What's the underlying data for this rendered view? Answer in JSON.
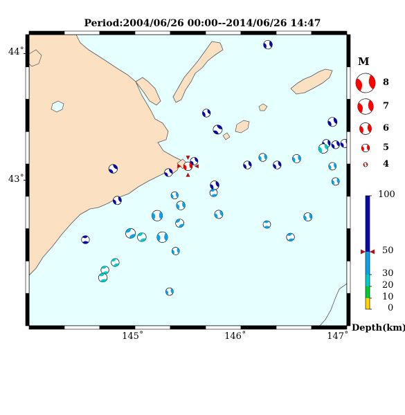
{
  "title": "Period:2004/06/26 00:00--2014/06/26 14:47",
  "lat_ticks": [
    {
      "value": 44,
      "label": "44˚"
    },
    {
      "value": 43,
      "label": "43˚"
    }
  ],
  "lon_ticks": [
    {
      "value": 145,
      "label": "145˚"
    },
    {
      "value": 146,
      "label": "146˚"
    },
    {
      "value": 147,
      "label": "147˚"
    }
  ],
  "colors": {
    "sea": "#e6ffff",
    "land": "#fbe0c2",
    "shallow": "#00ccc8",
    "mid": "#0aa2e8",
    "deep": "#0a0aaa",
    "latest": "#ff0000",
    "marker": "#b01010"
  },
  "magnitude_legend": {
    "title": "M",
    "items": [
      {
        "mag": 8,
        "label": "8"
      },
      {
        "mag": 7,
        "label": "7"
      },
      {
        "mag": 6,
        "label": "6"
      },
      {
        "mag": 5,
        "label": "5"
      },
      {
        "mag": 4,
        "label": "4"
      }
    ]
  },
  "depth_legend": {
    "unit_label": "Depth(km)",
    "ticks": [
      {
        "value": 100,
        "label": "100"
      },
      {
        "value": 50,
        "label": "50"
      },
      {
        "value": 30,
        "label": "30"
      },
      {
        "value": 20,
        "label": "20"
      },
      {
        "value": 10,
        "label": "10"
      },
      {
        "value": 0,
        "label": "0"
      }
    ],
    "bands": [
      {
        "from": 0,
        "to": 10,
        "color": "#ffd400"
      },
      {
        "from": 10,
        "to": 20,
        "color": "#00cc33"
      },
      {
        "from": 20,
        "to": 30,
        "color": "#00ccc8"
      },
      {
        "from": 30,
        "to": 50,
        "color": "#0aa2e8"
      },
      {
        "from": 50,
        "to": 100,
        "color": "#0a0aaa"
      }
    ],
    "latest_event_depth": 50
  },
  "events": [
    {
      "lon": 146.33,
      "lat": 44.07,
      "mag": 5.2,
      "depth": "deep",
      "rot": 30
    },
    {
      "lon": 145.73,
      "lat": 43.53,
      "mag": 5.0,
      "depth": "deep",
      "rot": 200
    },
    {
      "lon": 145.84,
      "lat": 43.4,
      "mag": 5.3,
      "depth": "deep",
      "rot": 350
    },
    {
      "lon": 145.61,
      "lat": 43.15,
      "mag": 4.9,
      "depth": "deep",
      "rot": 10
    },
    {
      "lon": 145.55,
      "lat": 43.11,
      "mag": 5.2,
      "depth": "latest",
      "rot": 30
    },
    {
      "lon": 145.36,
      "lat": 43.06,
      "mag": 5.0,
      "depth": "deep",
      "rot": 10
    },
    {
      "lon": 144.82,
      "lat": 43.09,
      "mag": 5.2,
      "depth": "deep",
      "rot": 0
    },
    {
      "lon": 144.86,
      "lat": 42.84,
      "mag": 5.1,
      "depth": "deep",
      "rot": 20
    },
    {
      "lon": 145.81,
      "lat": 42.96,
      "mag": 5.2,
      "depth": "deep",
      "rot": 20
    },
    {
      "lon": 145.8,
      "lat": 42.9,
      "mag": 4.9,
      "depth": "mid",
      "rot": 120
    },
    {
      "lon": 145.42,
      "lat": 42.88,
      "mag": 4.8,
      "depth": "mid",
      "rot": 30
    },
    {
      "lon": 145.48,
      "lat": 42.8,
      "mag": 5.2,
      "depth": "mid",
      "rot": 30
    },
    {
      "lon": 145.25,
      "lat": 42.72,
      "mag": 5.7,
      "depth": "mid",
      "rot": 40
    },
    {
      "lon": 145.47,
      "lat": 42.66,
      "mag": 5.1,
      "depth": "mid",
      "rot": 100
    },
    {
      "lon": 145.85,
      "lat": 42.73,
      "mag": 5.1,
      "depth": "mid",
      "rot": 20
    },
    {
      "lon": 144.99,
      "lat": 42.58,
      "mag": 5.5,
      "depth": "mid",
      "rot": 100
    },
    {
      "lon": 145.1,
      "lat": 42.55,
      "mag": 5.2,
      "depth": "shallow",
      "rot": 110
    },
    {
      "lon": 145.3,
      "lat": 42.55,
      "mag": 5.7,
      "depth": "mid",
      "rot": 40
    },
    {
      "lon": 144.55,
      "lat": 42.53,
      "mag": 5.0,
      "depth": "deep",
      "rot": 130
    },
    {
      "lon": 145.43,
      "lat": 42.44,
      "mag": 4.9,
      "depth": "mid",
      "rot": 30
    },
    {
      "lon": 144.84,
      "lat": 42.35,
      "mag": 5.0,
      "depth": "shallow",
      "rot": 110
    },
    {
      "lon": 144.74,
      "lat": 42.29,
      "mag": 5.0,
      "depth": "shallow",
      "rot": 120
    },
    {
      "lon": 144.72,
      "lat": 42.23,
      "mag": 5.2,
      "depth": "shallow",
      "rot": 120
    },
    {
      "lon": 145.37,
      "lat": 42.12,
      "mag": 4.9,
      "depth": "mid",
      "rot": 30
    },
    {
      "lon": 146.28,
      "lat": 43.18,
      "mag": 5.0,
      "depth": "mid",
      "rot": 30
    },
    {
      "lon": 146.13,
      "lat": 43.12,
      "mag": 5.0,
      "depth": "deep",
      "rot": 20
    },
    {
      "lon": 146.42,
      "lat": 43.12,
      "mag": 5.0,
      "depth": "deep",
      "rot": 20
    },
    {
      "lon": 146.61,
      "lat": 43.17,
      "mag": 5.1,
      "depth": "mid",
      "rot": 30
    },
    {
      "lon": 146.9,
      "lat": 43.29,
      "mag": 5.0,
      "depth": "deep",
      "rot": 30
    },
    {
      "lon": 146.87,
      "lat": 43.25,
      "mag": 5.4,
      "depth": "shallow",
      "rot": 200
    },
    {
      "lon": 146.96,
      "lat": 43.46,
      "mag": 5.3,
      "depth": "deep",
      "rot": 20
    },
    {
      "lon": 146.99,
      "lat": 43.28,
      "mag": 5.0,
      "depth": "deep",
      "rot": 20
    },
    {
      "lon": 147.08,
      "lat": 43.29,
      "mag": 5.1,
      "depth": "deep",
      "rot": 20
    },
    {
      "lon": 146.96,
      "lat": 43.11,
      "mag": 4.9,
      "depth": "mid",
      "rot": 30
    },
    {
      "lon": 146.99,
      "lat": 42.99,
      "mag": 4.9,
      "depth": "mid",
      "rot": 30
    },
    {
      "lon": 146.32,
      "lat": 42.65,
      "mag": 4.9,
      "depth": "mid",
      "rot": 130
    },
    {
      "lon": 146.72,
      "lat": 42.71,
      "mag": 5.1,
      "depth": "mid",
      "rot": 30
    },
    {
      "lon": 146.55,
      "lat": 42.55,
      "mag": 5.0,
      "depth": "mid",
      "rot": 120
    }
  ]
}
